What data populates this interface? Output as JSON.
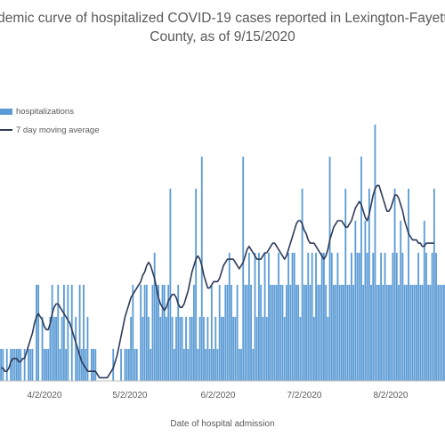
{
  "chart_data": {
    "type": "bar",
    "title_line1": "demic curve of hospitalized COVID-19 cases reported in Lexington-Fayett",
    "title_line2": "County, as of 9/15/2020",
    "xlabel": "Date of hospital admission",
    "ylabel": "",
    "x_tick_labels": [
      "4/2/2020",
      "5/2/2020",
      "6/2/2020",
      "7/2/2020",
      "8/2/2020"
    ],
    "legend": [
      "hospitalizations",
      "7 day moving average"
    ],
    "legend_position": "top-left",
    "grid": false,
    "ylim": [
      0,
      10
    ],
    "series": [
      {
        "name": "hospitalizations",
        "kind": "bar",
        "color": "#5B9BD5",
        "values": [
          1,
          1,
          0,
          1,
          0,
          1,
          1,
          1,
          1,
          1,
          1,
          0,
          1,
          0,
          1,
          1,
          1,
          0,
          3,
          3,
          0,
          2,
          1,
          1,
          1,
          2,
          3,
          2,
          2,
          3,
          1,
          2,
          3,
          1,
          3,
          0,
          3,
          0,
          2,
          1,
          3,
          1,
          3,
          1,
          2,
          0,
          1,
          1,
          1,
          0,
          0,
          0,
          0,
          0,
          0,
          0,
          0,
          1,
          0,
          0,
          0,
          1,
          0,
          1,
          1,
          1,
          2,
          3,
          1,
          1,
          0,
          3,
          2,
          3,
          3,
          2,
          1,
          3,
          4,
          3,
          3,
          2,
          3,
          3,
          2,
          3,
          6,
          2,
          1,
          2,
          3,
          2,
          2,
          1,
          2,
          1,
          2,
          2,
          3,
          6,
          1,
          2,
          7,
          2,
          1,
          2,
          1,
          3,
          1,
          2,
          1,
          3,
          2,
          2,
          3,
          3,
          4,
          3,
          2,
          2,
          3,
          1,
          1,
          7,
          3,
          3,
          4,
          3,
          1,
          4,
          2,
          4,
          3,
          2,
          4,
          2,
          4,
          3,
          3,
          3,
          3,
          4,
          3,
          3,
          2,
          3,
          4,
          3,
          4,
          4,
          3,
          3,
          2,
          6,
          3,
          3,
          4,
          3,
          4,
          2,
          4,
          3,
          3,
          4,
          4,
          3,
          2,
          7,
          4,
          3,
          3,
          4,
          3,
          3,
          3,
          6,
          3,
          3,
          4,
          3,
          5,
          4,
          4,
          7,
          3,
          5,
          4,
          6,
          3,
          4,
          8,
          3,
          3,
          4,
          3,
          4,
          3,
          3,
          3,
          4,
          6,
          4,
          3,
          5,
          4,
          3,
          3,
          6,
          3,
          3,
          3,
          3,
          4,
          3,
          3,
          5,
          4,
          3,
          3,
          4,
          6,
          4,
          3,
          3,
          3,
          3
        ]
      },
      {
        "name": "7 day moving average",
        "kind": "line",
        "color": "#2E3A58",
        "values": [
          0.4,
          0.4,
          0.3,
          0.3,
          0.4,
          0.6,
          0.7,
          0.7,
          0.7,
          0.6,
          0.6,
          0.7,
          0.7,
          0.9,
          1.1,
          1.3,
          1.5,
          1.8,
          2.0,
          2.1,
          2.0,
          1.9,
          1.7,
          1.6,
          1.6,
          1.8,
          2.1,
          2.3,
          2.4,
          2.4,
          2.3,
          2.2,
          2.1,
          2.0,
          1.9,
          1.8,
          1.6,
          1.4,
          1.2,
          1.0,
          0.8,
          0.6,
          0.5,
          0.4,
          0.3,
          0.3,
          0.3,
          0.3,
          0.3,
          0.2,
          0.1,
          0.1,
          0.1,
          0.1,
          0.1,
          0.2,
          0.3,
          0.4,
          0.6,
          0.8,
          1.1,
          1.4,
          1.7,
          2.0,
          2.2,
          2.4,
          2.6,
          2.7,
          2.8,
          2.9,
          3.0,
          3.1,
          3.3,
          3.4,
          3.6,
          3.7,
          3.6,
          3.4,
          3.2,
          2.9,
          2.6,
          2.4,
          2.3,
          2.2,
          2.3,
          2.5,
          2.6,
          2.7,
          2.7,
          2.6,
          2.4,
          2.3,
          2.3,
          2.4,
          2.6,
          2.8,
          3.1,
          3.4,
          3.6,
          3.8,
          3.9,
          3.8,
          3.6,
          3.3,
          3.1,
          2.9,
          2.9,
          3.0,
          3.1,
          3.1,
          3.1,
          3.2,
          3.4,
          3.6,
          3.7,
          3.8,
          3.8,
          3.8,
          3.8,
          3.7,
          3.6,
          3.5,
          3.6,
          3.7,
          3.9,
          4.1,
          4.2,
          4.1,
          4.0,
          3.9,
          3.8,
          3.8,
          3.8,
          3.9,
          4.0,
          4.0,
          4.1,
          4.2,
          4.3,
          4.3,
          4.2,
          4.1,
          4.0,
          3.9,
          3.8,
          3.9,
          4.1,
          4.3,
          4.5,
          4.7,
          4.9,
          5.0,
          5.0,
          4.9,
          4.7,
          4.6,
          4.4,
          4.3,
          4.3,
          4.3,
          4.2,
          4.1,
          4.0,
          3.9,
          3.8,
          3.9,
          4.1,
          4.4,
          4.6,
          4.8,
          4.9,
          5.0,
          5.0,
          5.0,
          4.9,
          4.8,
          4.8,
          4.9,
          5.0,
          5.2,
          5.4,
          5.5,
          5.6,
          5.5,
          5.3,
          5.1,
          5.0,
          5.2,
          5.5,
          5.8,
          6.0,
          6.1,
          6.1,
          5.9,
          5.7,
          5.5,
          5.3,
          5.3,
          5.4,
          5.6,
          5.8,
          5.8,
          5.7,
          5.5,
          5.3,
          5.0,
          4.8,
          4.6,
          4.5,
          4.4,
          4.4,
          4.4,
          4.3,
          4.3,
          4.2,
          4.2,
          4.3,
          4.3,
          4.3,
          4.3,
          4.3
        ]
      }
    ]
  }
}
